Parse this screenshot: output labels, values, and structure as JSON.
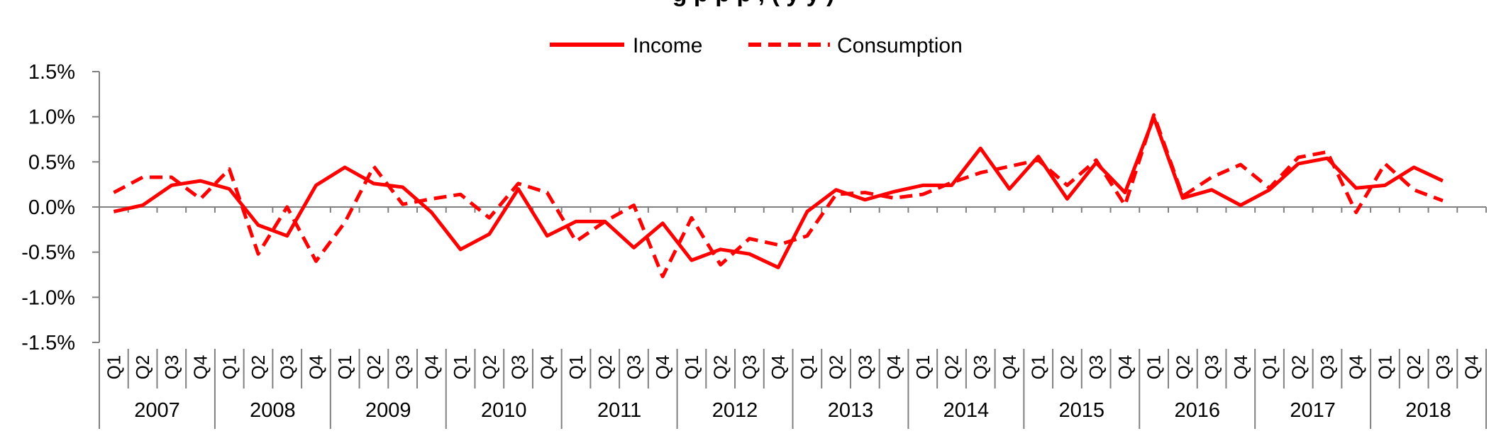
{
  "chart_data": {
    "type": "line",
    "title": "g                                                                    p  p    p ,   (              y  y    )",
    "xlabel": "",
    "ylabel": "",
    "ylim": [
      -1.5,
      1.5
    ],
    "y_ticks": [
      "1.5%",
      "1.0%",
      "0.5%",
      "0.0%",
      "-0.5%",
      "-1.0%",
      "-1.5%"
    ],
    "y_tick_values": [
      1.5,
      1.0,
      0.5,
      0.0,
      -0.5,
      -1.0,
      -1.5
    ],
    "quarters": [
      "Q1",
      "Q2",
      "Q3",
      "Q4"
    ],
    "years": [
      "2007",
      "2008",
      "2009",
      "2010",
      "2011",
      "2012",
      "2013",
      "2014",
      "2015",
      "2016",
      "2017",
      "2018"
    ],
    "legend_position": "top-center",
    "grid": false,
    "series": [
      {
        "name": "Income",
        "style": "solid",
        "color": "#ff0000",
        "values": [
          -0.05,
          0.02,
          0.24,
          0.29,
          0.2,
          -0.2,
          -0.32,
          0.24,
          0.44,
          0.26,
          0.22,
          -0.06,
          -0.47,
          -0.3,
          0.2,
          -0.32,
          -0.16,
          -0.16,
          -0.45,
          -0.18,
          -0.59,
          -0.47,
          -0.52,
          -0.67,
          -0.05,
          0.19,
          0.08,
          0.17,
          0.24,
          0.24,
          0.65,
          0.2,
          0.56,
          0.09,
          0.49,
          0.16,
          0.99,
          0.1,
          0.19,
          0.02,
          0.19,
          0.48,
          0.54,
          0.21,
          0.24,
          0.44,
          0.29
        ]
      },
      {
        "name": "Consumption",
        "style": "dashed",
        "color": "#ff0000",
        "values": [
          0.16,
          0.33,
          0.33,
          0.09,
          0.42,
          -0.52,
          0.0,
          -0.6,
          -0.17,
          0.45,
          0.03,
          0.09,
          0.14,
          -0.12,
          0.26,
          0.16,
          -0.38,
          -0.16,
          0.02,
          -0.77,
          -0.12,
          -0.64,
          -0.35,
          -0.42,
          -0.32,
          0.14,
          0.16,
          0.1,
          0.14,
          0.27,
          0.38,
          0.45,
          0.52,
          0.24,
          0.52,
          0.02,
          1.02,
          0.12,
          0.33,
          0.47,
          0.21,
          0.55,
          0.61,
          -0.06,
          0.48,
          0.19,
          0.07
        ]
      }
    ]
  }
}
